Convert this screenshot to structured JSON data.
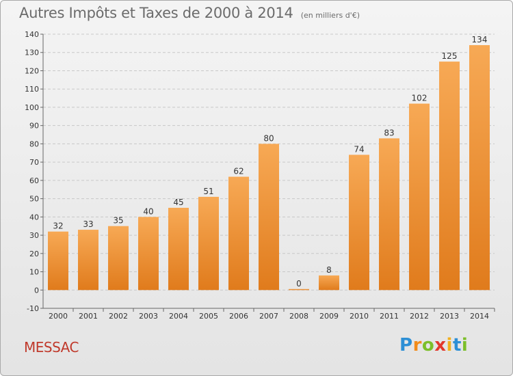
{
  "chart_data": {
    "type": "bar",
    "title": "Autres Impôts et Taxes de 2000 à 2014",
    "subtitle": "(en milliers d'€)",
    "categories": [
      "2000",
      "2001",
      "2002",
      "2003",
      "2004",
      "2005",
      "2006",
      "2007",
      "2008",
      "2009",
      "2010",
      "2011",
      "2012",
      "2013",
      "2014"
    ],
    "values": [
      32,
      33,
      35,
      40,
      45,
      51,
      62,
      80,
      0,
      8,
      74,
      83,
      102,
      125,
      134
    ],
    "data_labels": [
      "32",
      "33",
      "35",
      "40",
      "45",
      "51",
      "62",
      "80",
      "0",
      "8",
      "74",
      "83",
      "102",
      "125",
      "134"
    ],
    "y_ticks": [
      -10,
      0,
      10,
      20,
      30,
      40,
      50,
      60,
      70,
      80,
      90,
      100,
      110,
      120,
      130,
      140
    ],
    "y_tick_labels": [
      "-10",
      "0",
      "10",
      "20",
      "30",
      "40",
      "50",
      "60",
      "70",
      "80",
      "90",
      "100",
      "110",
      "120",
      "130",
      "140"
    ],
    "ylim": [
      -10,
      140
    ],
    "grid": true,
    "colors": {
      "bar_light": "#f7a955",
      "bar_dark": "#e07b1c",
      "grid": "#c8c8c8"
    }
  },
  "footer": {
    "location": "MESSAC",
    "brand_letters": [
      "P",
      "r",
      "o",
      "x",
      "i",
      "t",
      "i"
    ],
    "brand_colors": [
      "#2d8fd5",
      "#f28c1b",
      "#7cbf2a",
      "#e2382c",
      "#f2b01e",
      "#2d8fd5",
      "#7cbf2a"
    ]
  }
}
